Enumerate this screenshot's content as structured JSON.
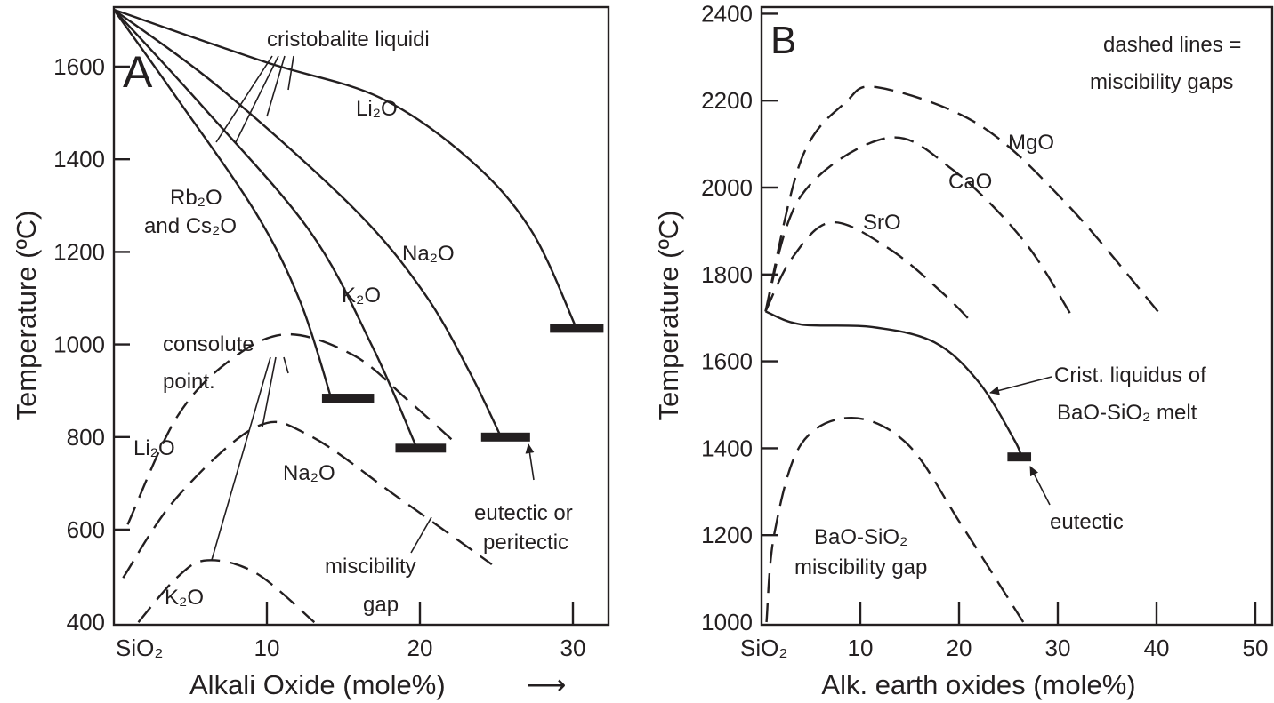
{
  "chart_data": [
    {
      "type": "line",
      "panel_label": "A",
      "xlabel": "Alkali Oxide (mole%)",
      "xlabel_arrow": "⟶",
      "ylabel": "Temperature (ºC)",
      "xlim": [
        0,
        32
      ],
      "ylim": [
        400,
        1728
      ],
      "x_origin_label": "SiO₂",
      "xticks": [
        10,
        20,
        30
      ],
      "yticks": [
        400,
        600,
        800,
        1000,
        1200,
        1400,
        1600
      ],
      "annotations": {
        "liquidi": "cristobalite liquidi",
        "consolute_1": "consolute",
        "consolute_2": "point.",
        "misc_1": "miscibility",
        "misc_2": "gap",
        "eut_1": "eutectic or",
        "eut_2": "peritectic",
        "rb_1": "Rb₂O",
        "rb_2": "and Cs₂O"
      },
      "series": [
        {
          "name": "Li₂O",
          "kind": "liquidus",
          "points": [
            [
              0,
              1723
            ],
            [
              9.9,
              1610
            ],
            [
              17.4,
              1533
            ],
            [
              23.3,
              1398
            ],
            [
              27.3,
              1245
            ],
            [
              30.2,
              1037
            ]
          ]
        },
        {
          "name": "Na₂O",
          "kind": "liquidus",
          "points": [
            [
              0,
              1723
            ],
            [
              7,
              1552
            ],
            [
              15.7,
              1293
            ],
            [
              20.3,
              1110
            ],
            [
              23.3,
              937
            ],
            [
              25.3,
              800
            ]
          ]
        },
        {
          "name": "K₂O",
          "kind": "liquidus",
          "points": [
            [
              0,
              1723
            ],
            [
              5.8,
              1514
            ],
            [
              12.8,
              1245
            ],
            [
              16.9,
              995
            ],
            [
              19.8,
              776
            ]
          ]
        },
        {
          "name": "Rb₂O and Cs₂O",
          "kind": "liquidus",
          "points": [
            [
              0,
              1723
            ],
            [
              4.1,
              1533
            ],
            [
              9.3,
              1283
            ],
            [
              12.2,
              1091
            ],
            [
              14.2,
              884
            ]
          ]
        },
        {
          "name": "Li₂O",
          "kind": "miscibility gap",
          "points": [
            [
              0.9,
              611
            ],
            [
              4.1,
              842
            ],
            [
              7.6,
              966
            ],
            [
              11.3,
              1022
            ],
            [
              15.7,
              976
            ],
            [
              19.2,
              880
            ],
            [
              22.1,
              794
            ]
          ]
        },
        {
          "name": "Na₂O",
          "kind": "miscibility gap",
          "points": [
            [
              0.6,
              496
            ],
            [
              4.1,
              669
            ],
            [
              9.3,
              822
            ],
            [
              12.8,
              803
            ],
            [
              18.6,
              669
            ],
            [
              24.7,
              525
            ]
          ]
        },
        {
          "name": "K₂O",
          "kind": "miscibility gap",
          "points": [
            [
              1.6,
              400
            ],
            [
              4.1,
              496
            ],
            [
              6.1,
              534
            ],
            [
              9.3,
              506
            ],
            [
              13.1,
              400
            ]
          ]
        }
      ],
      "eutectics": [
        {
          "series": "Li₂O",
          "x_range": [
            28.5,
            32
          ],
          "T": 1035
        },
        {
          "series": "Na₂O",
          "x_range": [
            24,
            27.2
          ],
          "T": 800
        },
        {
          "series": "K₂O",
          "x_range": [
            18.4,
            21.7
          ],
          "T": 776
        },
        {
          "series": "Rb₂O and Cs₂O",
          "x_range": [
            13.6,
            17
          ],
          "T": 884
        }
      ]
    },
    {
      "type": "line",
      "panel_label": "B",
      "xlabel": "Alk. earth oxides (mole%)",
      "ylabel": "Temperature (ºC)",
      "xlim": [
        0,
        51.7
      ],
      "ylim": [
        1000,
        2415
      ],
      "x_origin_label": "SiO₂",
      "xticks": [
        10,
        20,
        30,
        40,
        50
      ],
      "yticks": [
        1000,
        1200,
        1400,
        1600,
        1800,
        2000,
        2200,
        2400
      ],
      "legend_note_1": "dashed lines =",
      "legend_note_2": "miscibility gaps",
      "annotations": {
        "crist_1": "Crist. liquidus of",
        "crist_2": "BaO-SiO₂ melt",
        "eutectic": "eutectic",
        "bao_1": "BaO-SiO₂",
        "bao_2": "miscibility gap"
      },
      "series": [
        {
          "name": "BaO-SiO₂ liquidus",
          "kind": "liquidus",
          "points": [
            [
              0.4,
              1715
            ],
            [
              4,
              1685
            ],
            [
              11.2,
              1679
            ],
            [
              17.5,
              1644
            ],
            [
              22,
              1552
            ],
            [
              25.6,
              1419
            ],
            [
              26.3,
              1380
            ]
          ]
        },
        {
          "name": "MgO",
          "kind": "miscibility gap",
          "points": [
            [
              0.4,
              1715
            ],
            [
              4,
              2063
            ],
            [
              8.5,
              2196
            ],
            [
              11.9,
              2230
            ],
            [
              22,
              2145
            ],
            [
              31,
              1960
            ],
            [
              40.5,
              1705
            ]
          ]
        },
        {
          "name": "CaO",
          "kind": "miscibility gap",
          "points": [
            [
              0.4,
              1715
            ],
            [
              4,
              1981
            ],
            [
              12.7,
              2114
            ],
            [
              19.3,
              2042
            ],
            [
              26.5,
              1879
            ],
            [
              31.4,
              1705
            ]
          ]
        },
        {
          "name": "SrO",
          "kind": "miscibility gap",
          "points": [
            [
              0.4,
              1715
            ],
            [
              3.1,
              1838
            ],
            [
              7.1,
              1920
            ],
            [
              13,
              1858
            ],
            [
              18.4,
              1756
            ],
            [
              21.5,
              1685
            ]
          ]
        },
        {
          "name": "BaO-SiO₂",
          "kind": "miscibility gap",
          "points": [
            [
              0.5,
              1000
            ],
            [
              1.3,
              1204
            ],
            [
              4,
              1409
            ],
            [
              9.1,
              1470
            ],
            [
              14.8,
              1409
            ],
            [
              20.2,
              1225
            ],
            [
              26.5,
              1000
            ]
          ]
        }
      ],
      "eutectics": [
        {
          "series": "BaO-SiO₂",
          "x_range": [
            24.9,
            27.3
          ],
          "T": 1380
        }
      ]
    }
  ]
}
